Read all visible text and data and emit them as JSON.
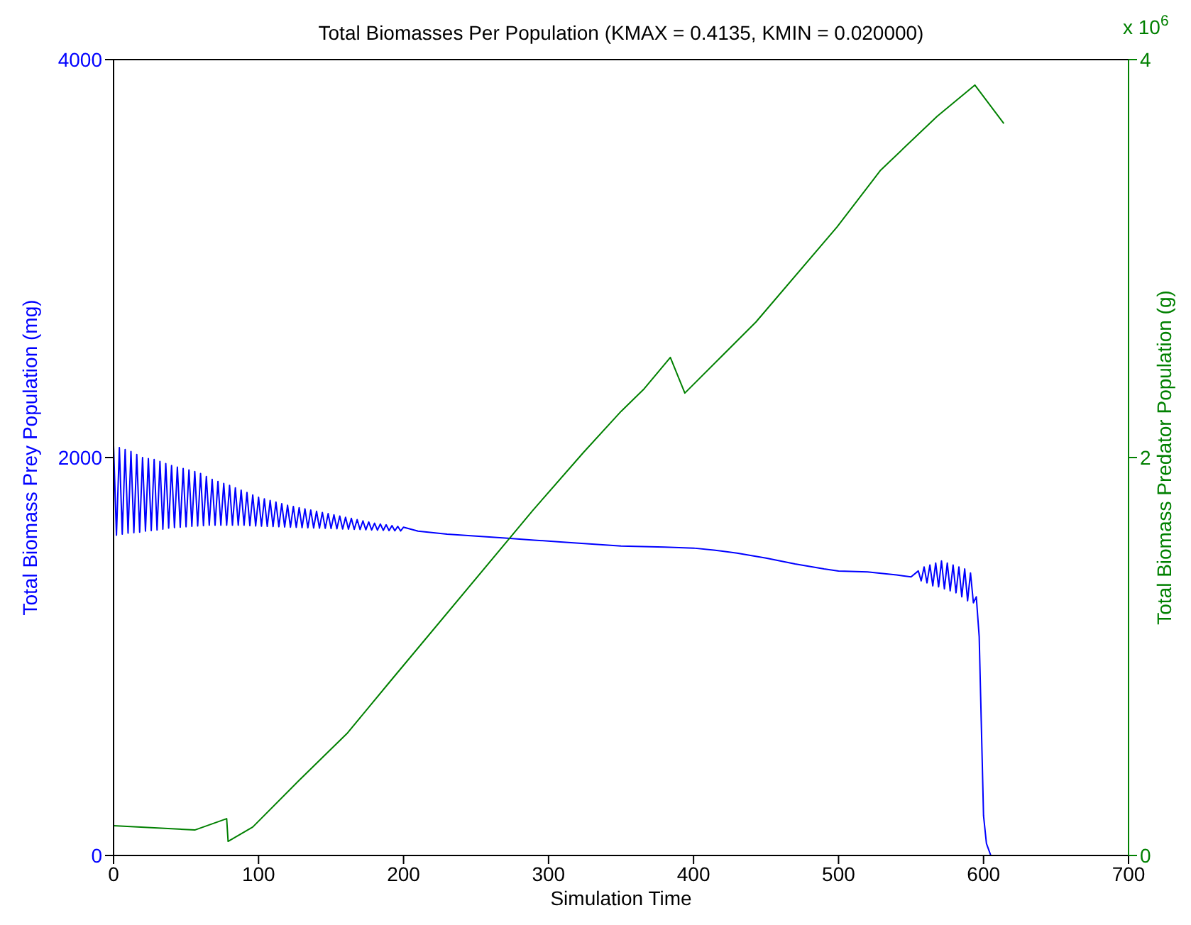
{
  "chart_data": {
    "type": "line",
    "title": "Total Biomasses Per Population (KMAX = 0.4135, KMIN = 0.020000)",
    "xlabel": "Simulation Time",
    "ylabel": "Total Biomass Prey Population (mg)",
    "y2label": "Total Biomass Predator Population (g)",
    "annotations": [
      "x 10$^{6}$"
    ],
    "xlim": [
      0,
      700
    ],
    "xticks": [
      0,
      100,
      200,
      300,
      400,
      500,
      600,
      700
    ],
    "ylim": [
      0,
      4000
    ],
    "yticks": [
      0,
      2000,
      4000
    ],
    "y2lim": [
      0,
      4
    ],
    "y2ticks": [
      0,
      2,
      4
    ],
    "grid": false,
    "marker": "none",
    "line_style": "solid",
    "series": [
      {
        "color": "#0000ff",
        "x": [
          0,
          2,
          4,
          6,
          8,
          10,
          12,
          14,
          16,
          18,
          20,
          22,
          24,
          26,
          28,
          30,
          32,
          34,
          36,
          38,
          40,
          42,
          44,
          46,
          48,
          50,
          52,
          54,
          56,
          58,
          60,
          62,
          64,
          66,
          68,
          70,
          72,
          74,
          76,
          78,
          80,
          82,
          84,
          86,
          88,
          90,
          92,
          94,
          96,
          98,
          100,
          102,
          104,
          106,
          108,
          110,
          112,
          114,
          116,
          118,
          120,
          122,
          124,
          126,
          128,
          130,
          132,
          134,
          136,
          138,
          140,
          142,
          144,
          146,
          148,
          150,
          152,
          154,
          156,
          158,
          160,
          162,
          164,
          166,
          168,
          170,
          172,
          174,
          176,
          178,
          180,
          182,
          184,
          186,
          188,
          190,
          192,
          194,
          196,
          198,
          200,
          210,
          230,
          250,
          270,
          290,
          310,
          330,
          350,
          380,
          400,
          414,
          430,
          450,
          470,
          490,
          500,
          520,
          540,
          550,
          555,
          557,
          559,
          561,
          563,
          565,
          567,
          569,
          571,
          573,
          575,
          577,
          579,
          581,
          583,
          585,
          587,
          589,
          591,
          593,
          595,
          597,
          598,
          599,
          600,
          602,
          605
        ],
        "values": [
          2060,
          1610,
          2050,
          1615,
          2040,
          1620,
          2030,
          1622,
          2015,
          1625,
          2000,
          1630,
          1995,
          1633,
          1990,
          1636,
          1980,
          1640,
          1970,
          1645,
          1960,
          1648,
          1952,
          1650,
          1945,
          1652,
          1938,
          1654,
          1930,
          1656,
          1920,
          1658,
          1905,
          1660,
          1890,
          1660,
          1880,
          1660,
          1870,
          1660,
          1860,
          1660,
          1848,
          1660,
          1836,
          1660,
          1824,
          1658,
          1812,
          1656,
          1800,
          1655,
          1792,
          1654,
          1784,
          1653,
          1776,
          1652,
          1768,
          1651,
          1760,
          1650,
          1754,
          1649,
          1748,
          1648,
          1742,
          1647,
          1736,
          1646,
          1730,
          1645,
          1724,
          1644,
          1718,
          1643,
          1712,
          1642,
          1706,
          1641,
          1700,
          1640,
          1694,
          1639,
          1688,
          1638,
          1682,
          1637,
          1676,
          1636,
          1670,
          1635,
          1666,
          1634,
          1662,
          1633,
          1658,
          1632,
          1654,
          1631,
          1650,
          1630,
          1615,
          1605,
          1595,
          1585,
          1575,
          1565,
          1555,
          1550,
          1545,
          1535,
          1520,
          1495,
          1465,
          1440,
          1430,
          1425,
          1410,
          1400,
          1430,
          1380,
          1450,
          1370,
          1460,
          1355,
          1470,
          1350,
          1480,
          1340,
          1470,
          1330,
          1460,
          1320,
          1450,
          1300,
          1440,
          1280,
          1420,
          1270,
          1300,
          1100,
          800,
          500,
          200,
          60,
          0
        ]
      },
      {
        "color": "#008000",
        "axis": "y2",
        "x": [
          0,
          56,
          78,
          79,
          96,
          128,
          161,
          191,
          289,
          324,
          350,
          366,
          384,
          394,
          443,
          499,
          529,
          568,
          594,
          614
        ],
        "values": [
          0.15,
          0.128,
          0.185,
          0.071,
          0.143,
          0.378,
          0.613,
          0.877,
          1.733,
          2.025,
          2.232,
          2.346,
          2.503,
          2.324,
          2.681,
          3.159,
          3.444,
          3.715,
          3.872,
          3.679
        ]
      }
    ]
  }
}
